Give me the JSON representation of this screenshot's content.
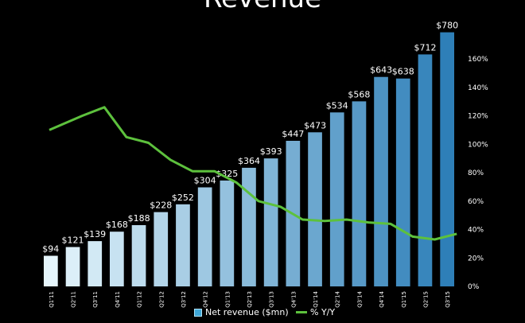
{
  "chart_data": {
    "type": "bar",
    "title": "Revenue",
    "categories": [
      "Q1'11",
      "Q2'11",
      "Q3'11",
      "Q4'11",
      "Q1'12",
      "Q2'12",
      "Q3'12",
      "Q4'12",
      "Q1'13",
      "Q2'13",
      "Q3'13",
      "Q4'13",
      "Q1'14",
      "Q2'14",
      "Q3'14",
      "Q4'14",
      "Q1'15",
      "Q2'15",
      "Q3'15"
    ],
    "series": [
      {
        "name": "Net revenue ($mn)",
        "type": "bar",
        "values": [
          94,
          121,
          139,
          168,
          188,
          228,
          252,
          304,
          325,
          364,
          393,
          447,
          473,
          534,
          568,
          643,
          638,
          712,
          780
        ],
        "labels": [
          "$94",
          "$121",
          "$139",
          "$168",
          "$188",
          "$228",
          "$252",
          "$304",
          "$325",
          "$364",
          "$393",
          "$447",
          "$473",
          "$534",
          "$568",
          "$643",
          "$638",
          "$712",
          "$780"
        ],
        "color_light": "#e6f6fc",
        "color_dark": "#2e7fb8"
      },
      {
        "name": "% Y/Y",
        "type": "line",
        "axis": "right",
        "values": [
          110,
          120,
          126,
          105,
          101,
          89,
          81,
          81,
          73,
          60,
          56,
          47,
          46,
          47,
          45,
          44,
          35,
          33,
          37
        ],
        "color": "#5dc13d"
      }
    ],
    "y_left_lim": [
      0,
      800
    ],
    "y_right_lim": [
      0,
      160
    ],
    "y_right_ticks": [
      "0%",
      "20%",
      "40%",
      "60%",
      "80%",
      "100%",
      "120%",
      "140%",
      "160%"
    ],
    "legend_placement": "bottom",
    "grid": false
  }
}
